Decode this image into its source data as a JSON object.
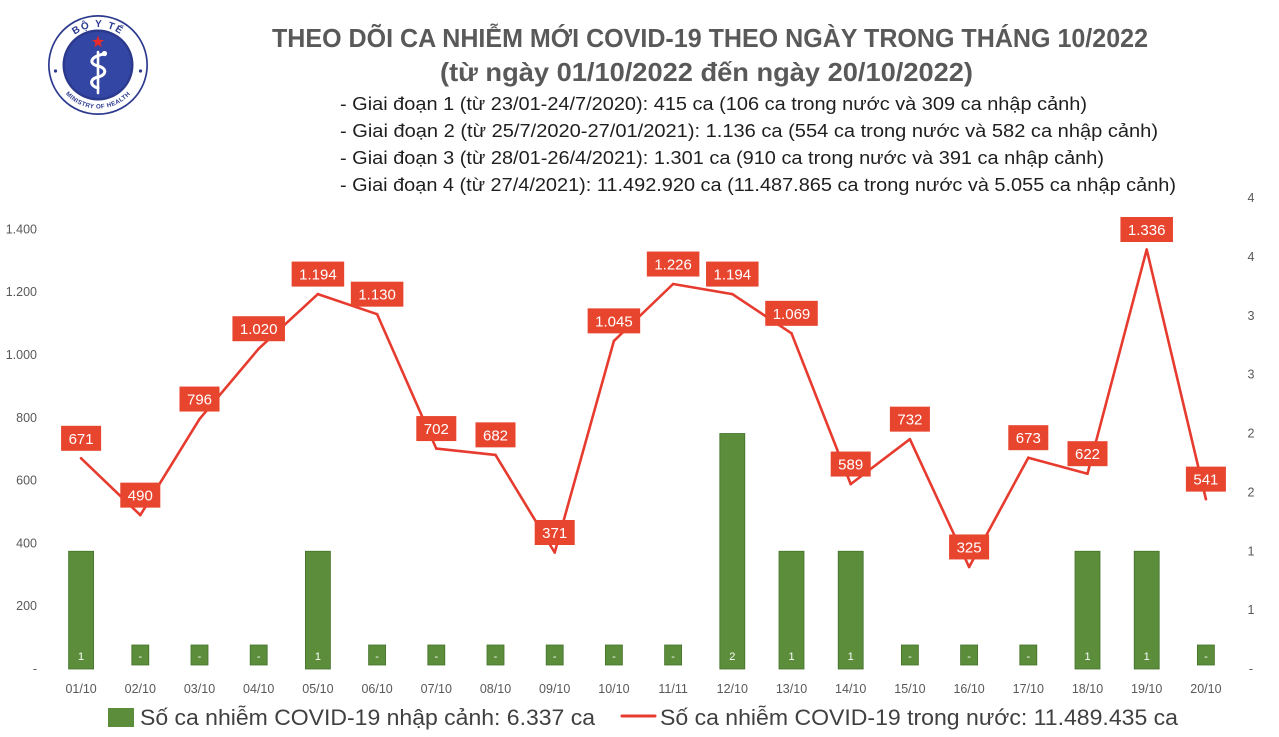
{
  "logo": {
    "top_text": "BỘ Y TẾ",
    "bottom_text": "MINISTRY OF HEALTH"
  },
  "colors": {
    "bar": "#5b8d3b",
    "bar_edge": "#44722b",
    "bar_label_text": "#ffffff",
    "line": "#e63b2e",
    "label_box": "#e8452f",
    "label_text": "#ffffff",
    "logo_blue": "#2c3a8e",
    "logo_inner": "#3446a3",
    "logo_star": "#e52b2b",
    "logo_white": "#ffffff"
  },
  "chart_data": {
    "type": "bar",
    "title": "THEO DÕI CA NHIỄM MỚI COVID-19 THEO NGÀY TRONG THÁNG 10/2022",
    "subtitle": "(từ ngày 01/10/2022 đến ngày 20/10/2022)",
    "annotations": [
      "- Giai đoạn 1 (từ 23/01-24/7/2020): 415 ca (106 ca trong nước và 309 ca nhập cảnh)",
      "- Giai đoạn 2 (từ 25/7/2020-27/01/2021): 1.136 ca (554 ca trong nước và 582 ca nhập cảnh)",
      "- Giai đoạn 3 (từ 28/01-26/4/2021): 1.301 ca (910 ca trong nước và 391 ca nhập cảnh)",
      "- Giai đoạn 4 (từ 27/4/2021): 11.492.920 ca (11.487.865 ca trong nước và 5.055 ca nhập cảnh)"
    ],
    "categories": [
      "01/10",
      "02/10",
      "03/10",
      "04/10",
      "05/10",
      "06/10",
      "07/10",
      "08/10",
      "09/10",
      "10/10",
      "11/11",
      "12/10",
      "13/10",
      "14/10",
      "15/10",
      "16/10",
      "17/10",
      "18/10",
      "19/10",
      "20/10"
    ],
    "series": [
      {
        "name": "Số ca nhiễm COVID-19 nhập cảnh: 6.337 ca",
        "type": "bar",
        "axis": "right",
        "values": [
          1,
          0,
          0,
          0,
          1,
          0,
          0,
          0,
          0,
          0,
          0,
          2,
          1,
          1,
          0,
          0,
          0,
          1,
          1,
          0
        ],
        "labels": [
          "1",
          "-",
          "-",
          "-",
          "1",
          "-",
          "-",
          "-",
          "-",
          "-",
          "-",
          "2",
          "1",
          "1",
          "-",
          "-",
          "-",
          "1",
          "1",
          "-"
        ]
      },
      {
        "name": "Số ca nhiễm COVID-19 trong nước: 11.489.435 ca",
        "type": "line",
        "axis": "left",
        "values": [
          671,
          490,
          796,
          1020,
          1194,
          1130,
          702,
          682,
          371,
          1045,
          1226,
          1194,
          1069,
          589,
          732,
          325,
          673,
          622,
          1336,
          541
        ],
        "labels": [
          "671",
          "490",
          "796",
          "1.020",
          "1.194",
          "1.130",
          "702",
          "682",
          "371",
          "1.045",
          "1.226",
          "1.194",
          "1.069",
          "589",
          "732",
          "325",
          "673",
          "622",
          "1.336",
          "541"
        ]
      }
    ],
    "y_left": {
      "range": [
        0,
        1500
      ],
      "tick_values": [
        0,
        200,
        400,
        600,
        800,
        1000,
        1200,
        1400
      ],
      "tick_labels": [
        "-",
        "200",
        "400",
        "600",
        "800",
        "1.000",
        "1.200",
        "1.400"
      ]
    },
    "y_right": {
      "range": [
        0,
        4
      ],
      "tick_values": [
        0,
        0.5,
        1,
        1.5,
        2,
        2.5,
        3,
        3.5,
        4
      ],
      "tick_labels": [
        "-",
        "1",
        "1",
        "2",
        "2",
        "3",
        "3",
        "4",
        "4"
      ]
    },
    "grid": false,
    "legend_position": "bottom"
  }
}
